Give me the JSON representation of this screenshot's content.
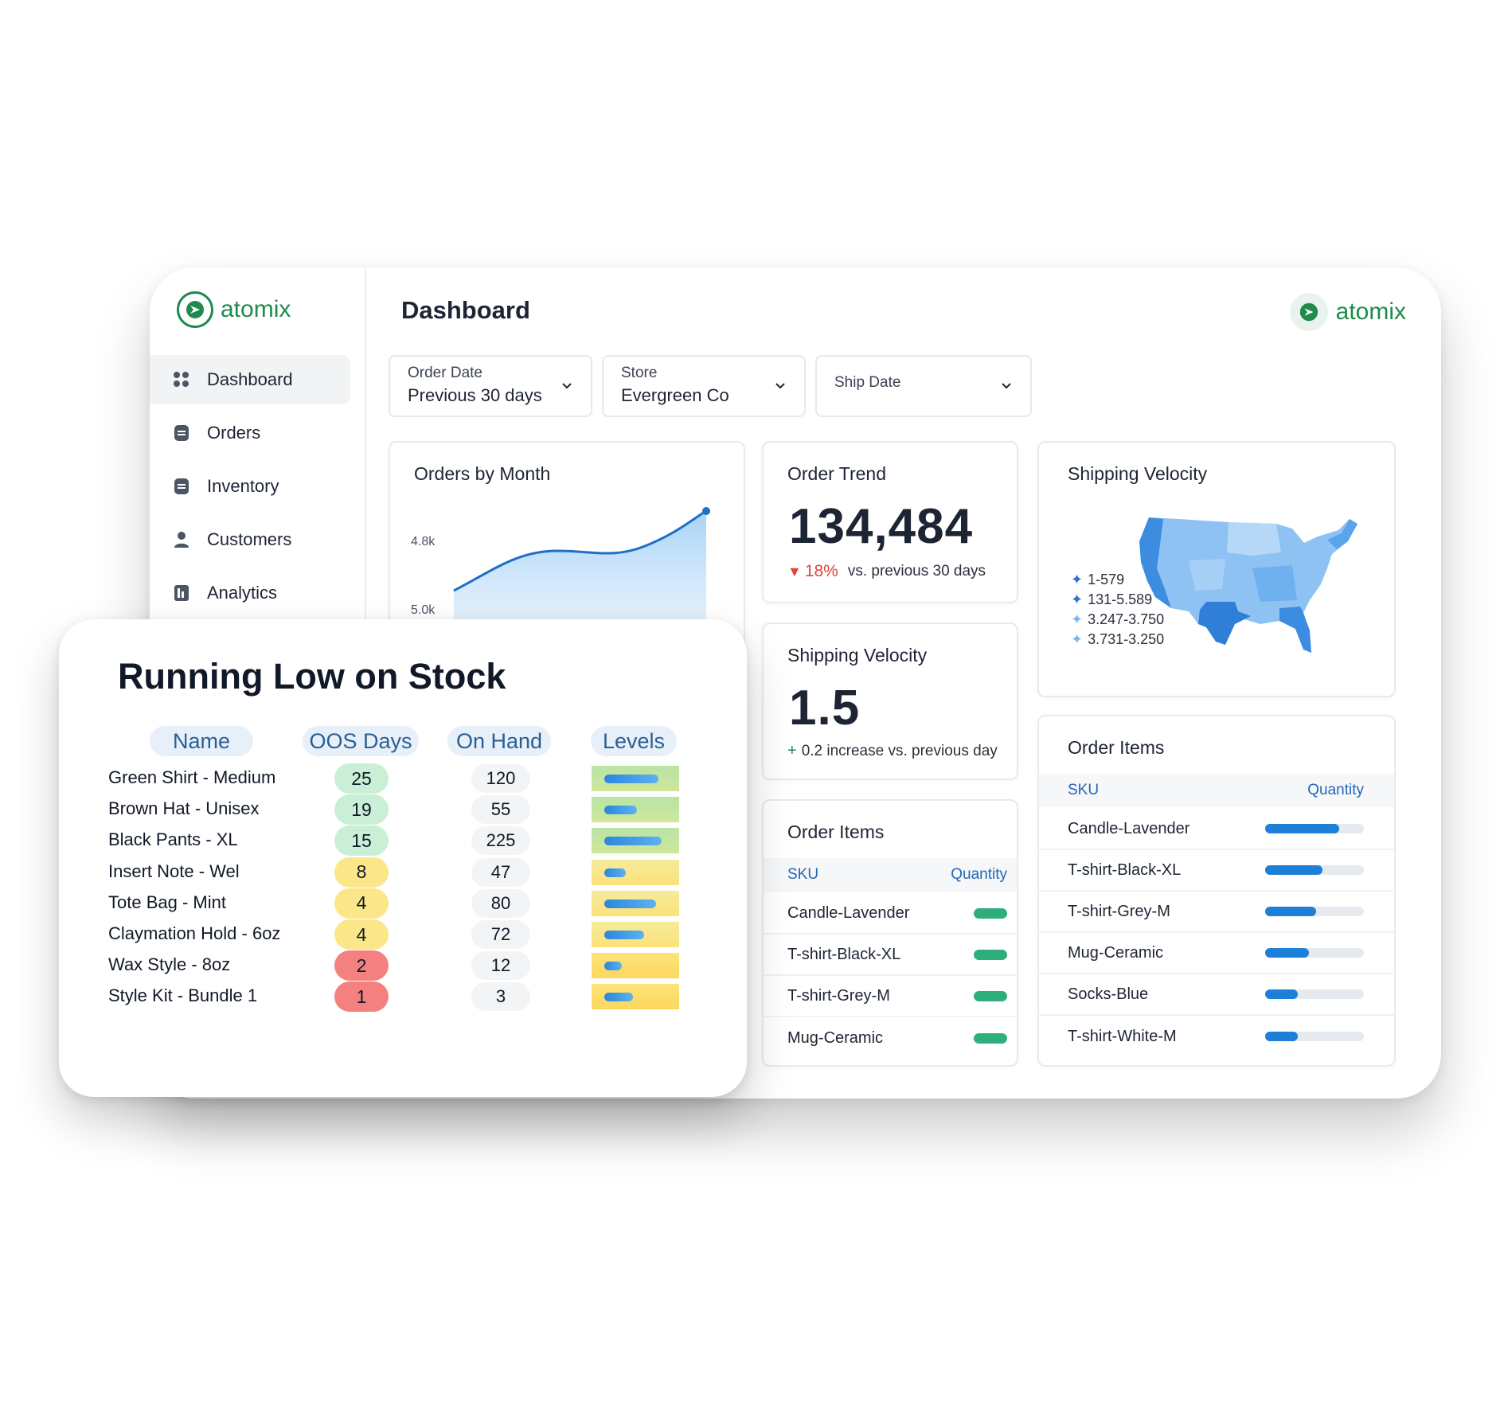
{
  "brand": {
    "name": "atomix",
    "accent": "#1f8a4c"
  },
  "sidebar": {
    "items": [
      {
        "label": "Dashboard",
        "icon": "grid-icon"
      },
      {
        "label": "Orders",
        "icon": "orders-icon"
      },
      {
        "label": "Inventory",
        "icon": "inventory-icon"
      },
      {
        "label": "Customers",
        "icon": "user-icon"
      },
      {
        "label": "Analytics",
        "icon": "analytics-icon"
      }
    ]
  },
  "header": {
    "title": "Dashboard"
  },
  "filters": [
    {
      "label": "Order Date",
      "value": "Previous 30 days"
    },
    {
      "label": "Store",
      "value": "Evergreen Co"
    },
    {
      "label": "Ship Date",
      "value": ""
    }
  ],
  "orders_by_month": {
    "title": "Orders by Month",
    "y_labels": [
      "4.8k",
      "5.0k"
    ]
  },
  "order_trend": {
    "title": "Order Trend",
    "value": "134,484",
    "delta_pct": "18%",
    "delta_text": "vs. previous 30 days",
    "delta_color": "#e0443c"
  },
  "shipping_velocity_small": {
    "title": "Shipping Velocity",
    "value": "1.5",
    "delta_text": "0.2 increase vs. previous day"
  },
  "shipping_velocity_map": {
    "title": "Shipping Velocity",
    "legend": [
      "1-579",
      "131-5.589",
      "3.247-3.750",
      "3.731-3.250"
    ]
  },
  "order_items_small": {
    "title": "Order Items",
    "col_sku": "SKU",
    "col_qty": "Quantity",
    "rows": [
      "Candle-Lavender",
      "T-shirt-Black-XL",
      "T-shirt-Grey-M",
      "Mug-Ceramic"
    ]
  },
  "order_items_large": {
    "title": "Order Items",
    "col_sku": "SKU",
    "col_qty": "Quantity",
    "rows": [
      {
        "sku": "Candle-Lavender",
        "qty_fraction": 0.75
      },
      {
        "sku": "T-shirt-Black-XL",
        "qty_fraction": 0.58
      },
      {
        "sku": "T-shirt-Grey-M",
        "qty_fraction": 0.52
      },
      {
        "sku": "Mug-Ceramic",
        "qty_fraction": 0.44
      },
      {
        "sku": "Socks-Blue",
        "qty_fraction": 0.33
      },
      {
        "sku": "T-shirt-White-M",
        "qty_fraction": 0.33
      }
    ]
  },
  "low_stock": {
    "title": "Running Low on Stock",
    "columns": [
      "Name",
      "OOS Days",
      "On Hand",
      "Levels"
    ],
    "rows": [
      {
        "name": "Green Shirt - Medium",
        "oos_days": "25",
        "on_hand": "120",
        "level": 0.75,
        "status": "green"
      },
      {
        "name": "Brown Hat - Unisex",
        "oos_days": "19",
        "on_hand": "55",
        "level": 0.45,
        "status": "green"
      },
      {
        "name": "Black Pants - XL",
        "oos_days": "15",
        "on_hand": "225",
        "level": 0.8,
        "status": "green"
      },
      {
        "name": "Insert Note - Wel",
        "oos_days": "8",
        "on_hand": "47",
        "level": 0.3,
        "status": "yellow"
      },
      {
        "name": "Tote Bag - Mint",
        "oos_days": "4",
        "on_hand": "80",
        "level": 0.72,
        "status": "yellow"
      },
      {
        "name": "Claymation Hold - 6oz",
        "oos_days": "4",
        "on_hand": "72",
        "level": 0.55,
        "status": "yellow"
      },
      {
        "name": "Wax Style - 8oz",
        "oos_days": "2",
        "on_hand": "12",
        "level": 0.24,
        "status": "red"
      },
      {
        "name": "Style Kit - Bundle 1",
        "oos_days": "1",
        "on_hand": "3",
        "level": 0.4,
        "status": "red"
      }
    ]
  },
  "colors": {
    "badge_green": "#c9f0d6",
    "badge_yellow": "#fbe78a",
    "badge_red": "#f48080",
    "map_blue": "#2b80e0"
  }
}
